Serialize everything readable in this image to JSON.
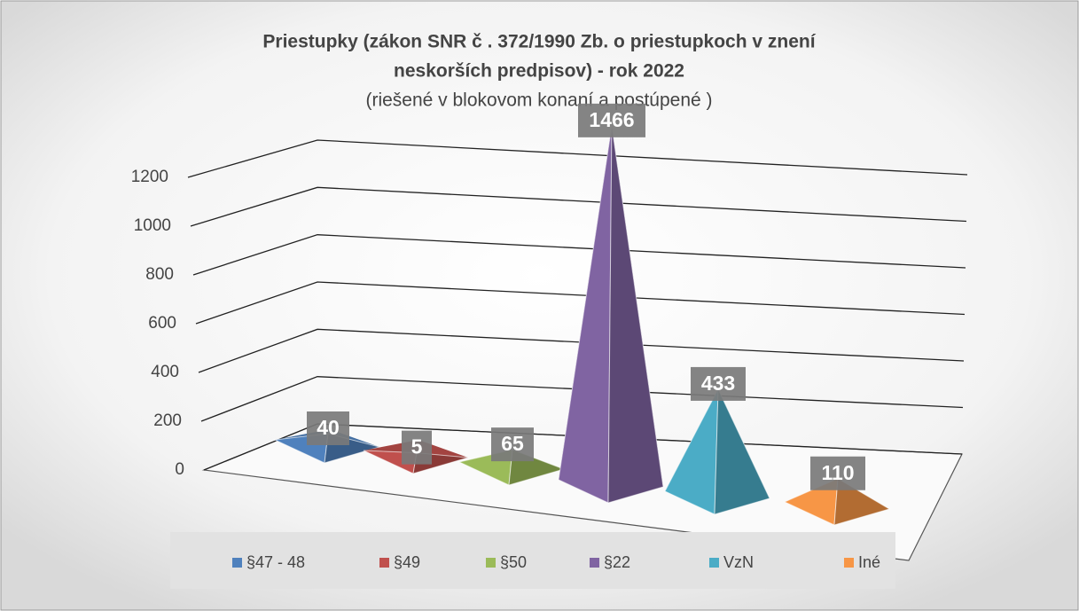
{
  "chart_data": {
    "type": "pyramid3d",
    "title": [
      "Priestupky (zákon SNR č . 372/1990 Zb. o priestupkoch v znení",
      "neskorších predpisov) - rok 2022"
    ],
    "subtitle": "(riešené v blokovom konaní a postúpené )",
    "series": [
      {
        "name": "§47 - 48",
        "color": "#4f81bd",
        "values": [
          40
        ]
      },
      {
        "name": "§49",
        "color": "#c0504d",
        "values": [
          5
        ]
      },
      {
        "name": "§50",
        "color": "#9bbb59",
        "values": [
          65
        ]
      },
      {
        "name": "§22",
        "color": "#8064a2",
        "values": [
          1466
        ]
      },
      {
        "name": "VzN",
        "color": "#4bacc6",
        "values": [
          433
        ]
      },
      {
        "name": "Iné",
        "color": "#f79646",
        "values": [
          110
        ]
      }
    ],
    "ylim": [
      0,
      1200
    ],
    "yticks": [
      0,
      200,
      400,
      600,
      800,
      1000,
      1200
    ],
    "grid": true,
    "legend": "bottom"
  }
}
